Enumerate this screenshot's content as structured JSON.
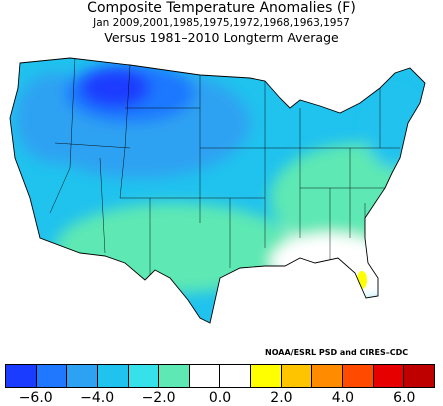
{
  "title": {
    "line1": "Composite Temperature Anomalies (F)",
    "line2": "Jan  2009,2001,1985,1975,1972,1968,1963,1957",
    "line3": "Versus 1981–2010 Longterm Average"
  },
  "credit": "NOAA/ESRL PSD and CIRES–CDC",
  "colorbar": {
    "colors": [
      "#1a3cff",
      "#1f78ff",
      "#2ea2f2",
      "#20c2ee",
      "#36e1e9",
      "#5de8b4",
      "#ffffff",
      "#ffffff",
      "#ffff00",
      "#ffc400",
      "#ff8c00",
      "#ff4a00",
      "#e60000",
      "#bf0000"
    ],
    "tick_labels": [
      "−6.0",
      "−4.0",
      "−2.0",
      "0.0",
      "2.0",
      "4.0",
      "6.0"
    ],
    "tick_values": [
      -6,
      -4,
      -2,
      0,
      2,
      4,
      6
    ]
  },
  "map": {
    "region": "Contiguous United States climate divisions",
    "anomaly_pattern": "coldest (about −6 F) over Montana and the northern Rockies/High Plains; −4 to −2 F across the North and West; −2 to 0 F in the South-Central and Mid-Atlantic; near normal (0 to +2 F) across the Southeast; +2 F in central Florida"
  }
}
